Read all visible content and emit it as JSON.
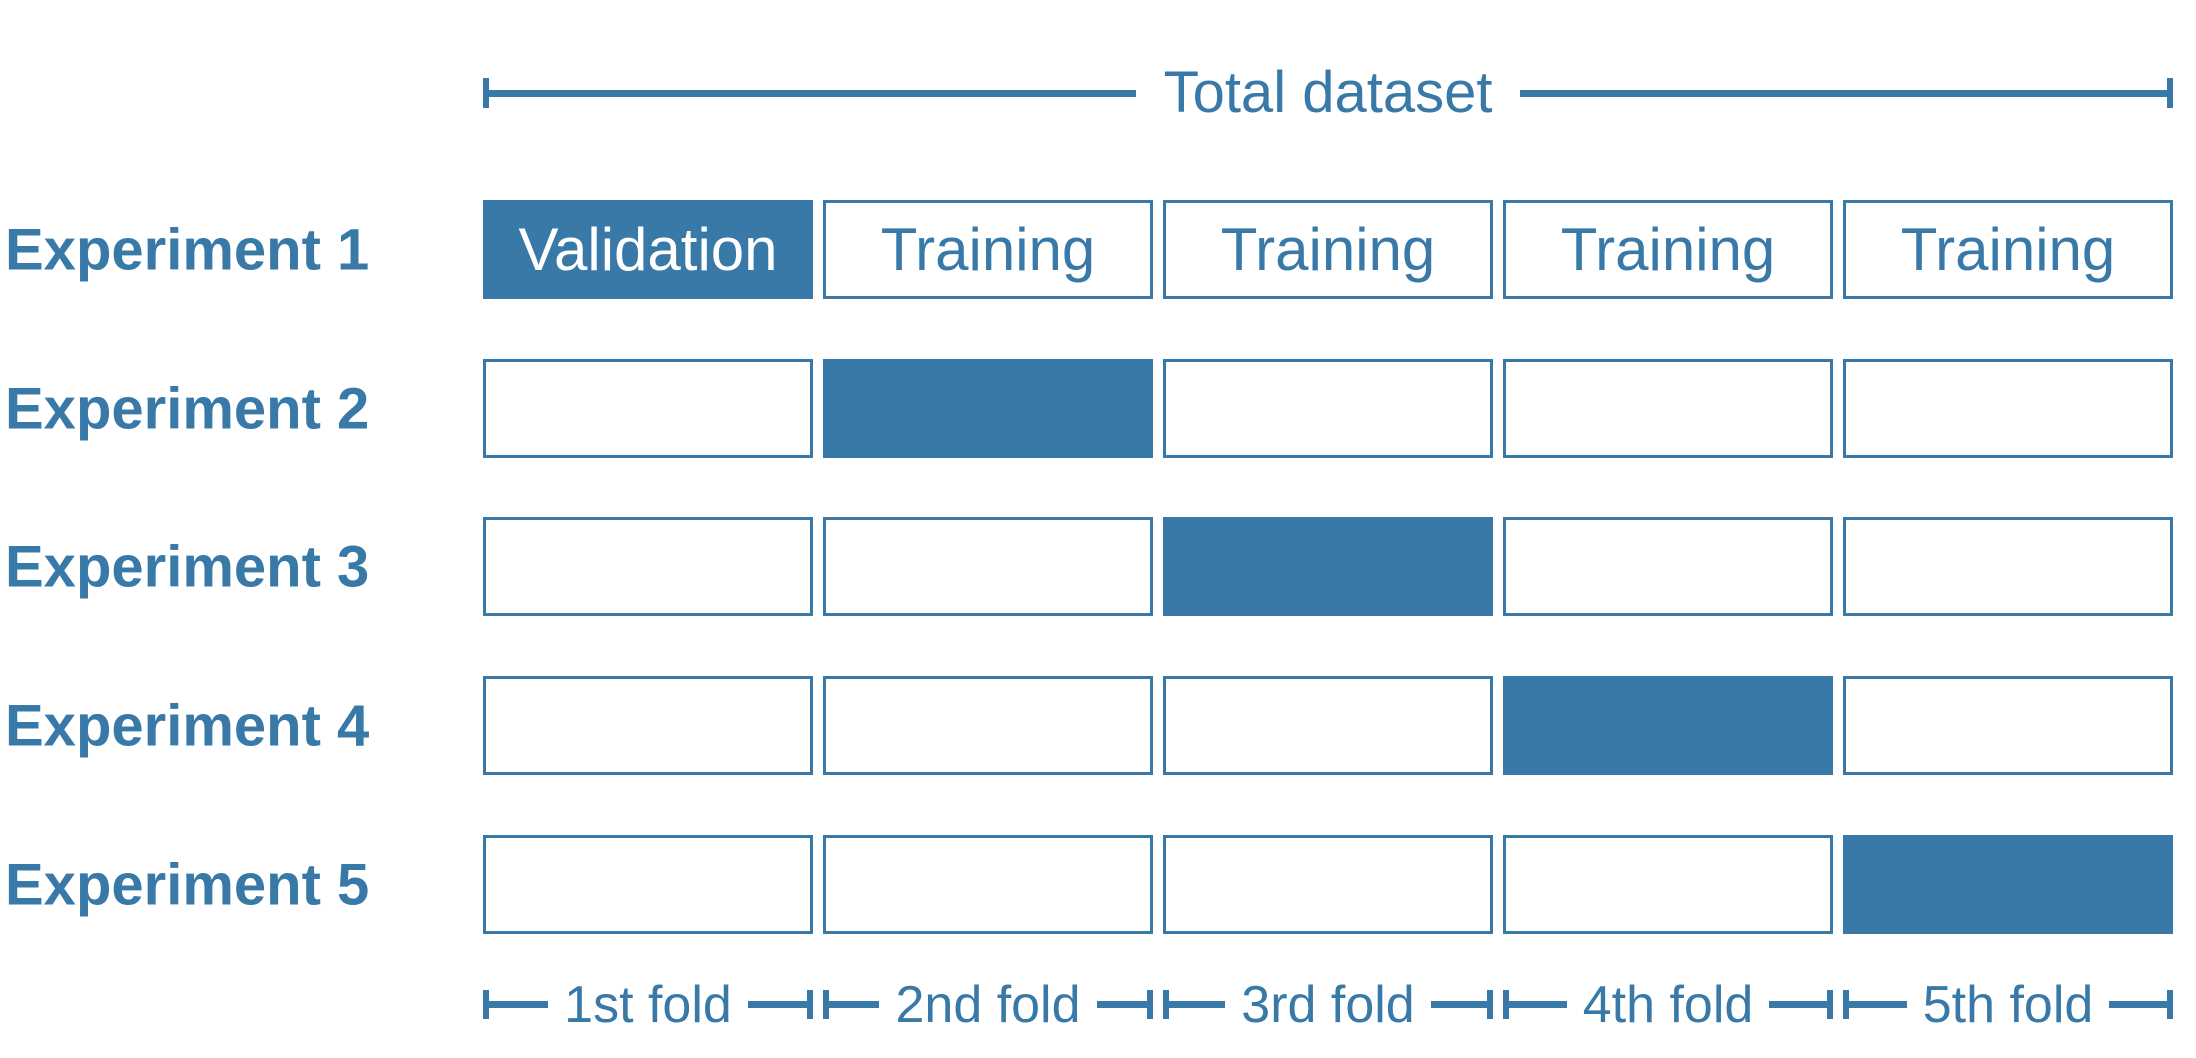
{
  "colors": {
    "primary": "#3879A8",
    "background": "#FFFFFF"
  },
  "header": {
    "label": "Total dataset"
  },
  "experiments": [
    {
      "label": "Experiment 1",
      "validation_fold": 0,
      "cells": [
        "Validation",
        "Training",
        "Training",
        "Training",
        "Training"
      ]
    },
    {
      "label": "Experiment 2",
      "validation_fold": 1,
      "cells": [
        "",
        "",
        "",
        "",
        ""
      ]
    },
    {
      "label": "Experiment 3",
      "validation_fold": 2,
      "cells": [
        "",
        "",
        "",
        "",
        ""
      ]
    },
    {
      "label": "Experiment 4",
      "validation_fold": 3,
      "cells": [
        "",
        "",
        "",
        "",
        ""
      ]
    },
    {
      "label": "Experiment 5",
      "validation_fold": 4,
      "cells": [
        "",
        "",
        "",
        "",
        ""
      ]
    }
  ],
  "folds": [
    {
      "label": "1st fold"
    },
    {
      "label": "2nd fold"
    },
    {
      "label": "3rd fold"
    },
    {
      "label": "4th fold"
    },
    {
      "label": "5th fold"
    }
  ]
}
